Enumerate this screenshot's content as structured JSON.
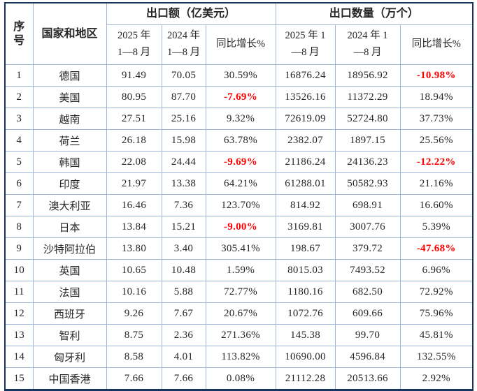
{
  "table": {
    "header": {
      "serial": "序\n号",
      "country": "国家和地区",
      "group_value": "出口额（亿美元）",
      "group_qty": "出口数量（万个）",
      "value_2025": "2025 年\n1—8 月",
      "value_2024": "2024 年\n1—8 月",
      "value_growth": "同比增长%",
      "qty_2025": "2025 年 1\n—8 月",
      "qty_2024": "2024 年 1\n—8 月",
      "qty_growth": "同比增长%"
    },
    "colors": {
      "outer_border": "#17365d",
      "inner_border": "#9fb6d9",
      "text": "#262626",
      "negative_value": "#ff0000"
    },
    "rows": [
      {
        "no": "1",
        "country": "德国",
        "v2025": "91.49",
        "v2024": "70.05",
        "v_growth": "30.59%",
        "q2025": "16876.24",
        "q2024": "18956.92",
        "q_growth": "-10.98%"
      },
      {
        "no": "2",
        "country": "美国",
        "v2025": "80.95",
        "v2024": "87.70",
        "v_growth": "-7.69%",
        "q2025": "13526.16",
        "q2024": "11372.29",
        "q_growth": "18.94%"
      },
      {
        "no": "3",
        "country": "越南",
        "v2025": "27.51",
        "v2024": "25.16",
        "v_growth": "9.32%",
        "q2025": "72619.09",
        "q2024": "52724.80",
        "q_growth": "37.73%"
      },
      {
        "no": "4",
        "country": "荷兰",
        "v2025": "26.18",
        "v2024": "15.98",
        "v_growth": "63.78%",
        "q2025": "2382.07",
        "q2024": "1897.15",
        "q_growth": "25.56%"
      },
      {
        "no": "5",
        "country": "韩国",
        "v2025": "22.08",
        "v2024": "24.44",
        "v_growth": "-9.69%",
        "q2025": "21186.24",
        "q2024": "24136.23",
        "q_growth": "-12.22%"
      },
      {
        "no": "6",
        "country": "印度",
        "v2025": "21.97",
        "v2024": "13.38",
        "v_growth": "64.21%",
        "q2025": "61288.01",
        "q2024": "50582.93",
        "q_growth": "21.16%"
      },
      {
        "no": "7",
        "country": "澳大利亚",
        "v2025": "16.46",
        "v2024": "7.36",
        "v_growth": "123.70%",
        "q2025": "814.92",
        "q2024": "698.91",
        "q_growth": "16.60%"
      },
      {
        "no": "8",
        "country": "日本",
        "v2025": "13.84",
        "v2024": "15.21",
        "v_growth": "-9.00%",
        "q2025": "3169.81",
        "q2024": "3007.76",
        "q_growth": "5.39%"
      },
      {
        "no": "9",
        "country": "沙特阿拉伯",
        "v2025": "13.80",
        "v2024": "3.40",
        "v_growth": "305.41%",
        "q2025": "198.67",
        "q2024": "379.72",
        "q_growth": "-47.68%"
      },
      {
        "no": "10",
        "country": "英国",
        "v2025": "10.65",
        "v2024": "10.48",
        "v_growth": "1.59%",
        "q2025": "8015.03",
        "q2024": "7493.52",
        "q_growth": "6.96%"
      },
      {
        "no": "11",
        "country": "法国",
        "v2025": "10.16",
        "v2024": "5.88",
        "v_growth": "72.77%",
        "q2025": "1180.16",
        "q2024": "682.50",
        "q_growth": "72.92%"
      },
      {
        "no": "12",
        "country": "西班牙",
        "v2025": "9.26",
        "v2024": "7.67",
        "v_growth": "20.67%",
        "q2025": "1072.76",
        "q2024": "609.66",
        "q_growth": "75.96%"
      },
      {
        "no": "13",
        "country": "智利",
        "v2025": "8.75",
        "v2024": "2.36",
        "v_growth": "271.36%",
        "q2025": "145.38",
        "q2024": "99.70",
        "q_growth": "45.81%"
      },
      {
        "no": "14",
        "country": "匈牙利",
        "v2025": "8.58",
        "v2024": "4.01",
        "v_growth": "113.82%",
        "q2025": "10690.00",
        "q2024": "4596.84",
        "q_growth": "132.55%"
      },
      {
        "no": "15",
        "country": "中国香港",
        "v2025": "7.66",
        "v2024": "7.66",
        "v_growth": "0.08%",
        "q2025": "21112.28",
        "q2024": "20513.66",
        "q_growth": "2.92%"
      }
    ]
  }
}
